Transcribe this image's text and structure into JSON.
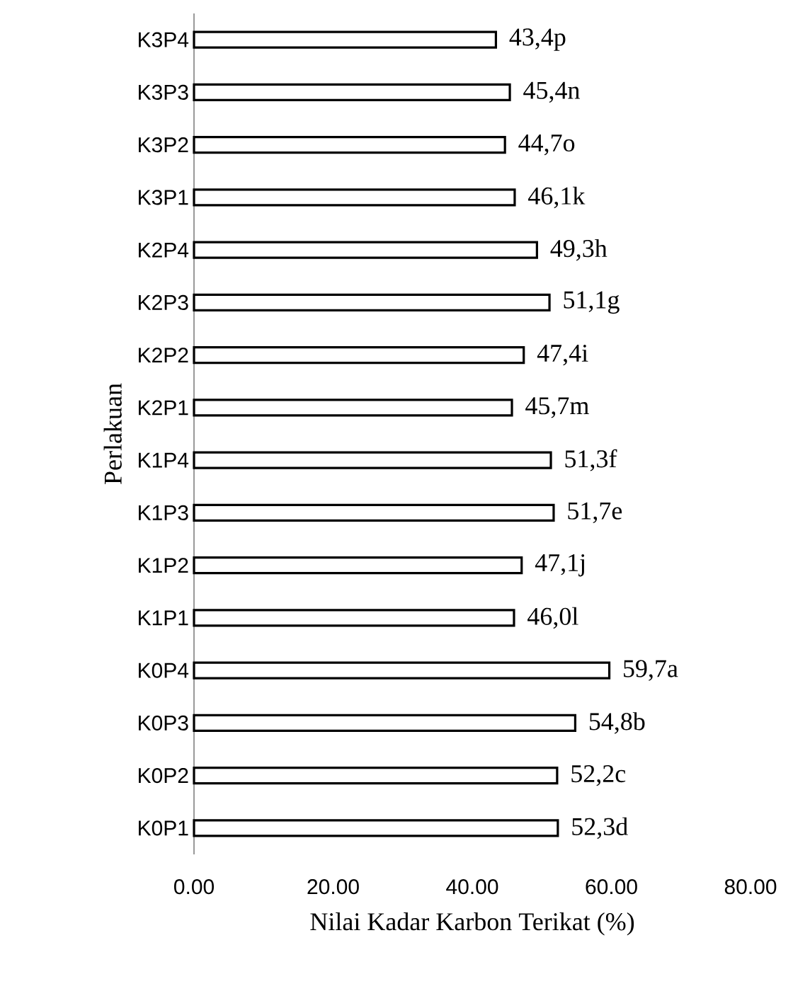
{
  "chart_data": {
    "type": "bar",
    "orientation": "horizontal",
    "xlabel": "Nilai Kadar Karbon Terikat (%)",
    "ylabel": "Perlakuan",
    "categories": [
      "K3P4",
      "K3P3",
      "K3P2",
      "K3P1",
      "K2P4",
      "K2P3",
      "K2P2",
      "K2P1",
      "K1P4",
      "K1P3",
      "K1P2",
      "K1P1",
      "K0P4",
      "K0P3",
      "K0P2",
      "K0P1"
    ],
    "values": [
      43.4,
      45.4,
      44.7,
      46.1,
      49.3,
      51.1,
      47.4,
      45.7,
      51.3,
      51.7,
      47.1,
      46.0,
      59.7,
      54.8,
      52.2,
      52.3
    ],
    "value_labels": [
      "43,4p",
      "45,4n",
      "44,7o",
      "46,1k",
      "49,3h",
      "51,1g",
      "47,4i",
      "45,7m",
      "51,3f",
      "51,7e",
      "47,1j",
      "46,0l",
      "59,7a",
      "54,8b",
      "52,2c",
      "52,3d"
    ],
    "color": "#ffffff",
    "xlim": [
      0,
      80
    ],
    "xticks": [
      {
        "value": 0,
        "label": "0.00"
      },
      {
        "value": 20,
        "label": "20.00"
      },
      {
        "value": 40,
        "label": "40.00"
      },
      {
        "value": 60,
        "label": "60.00"
      },
      {
        "value": 80,
        "label": "80.00"
      }
    ]
  }
}
